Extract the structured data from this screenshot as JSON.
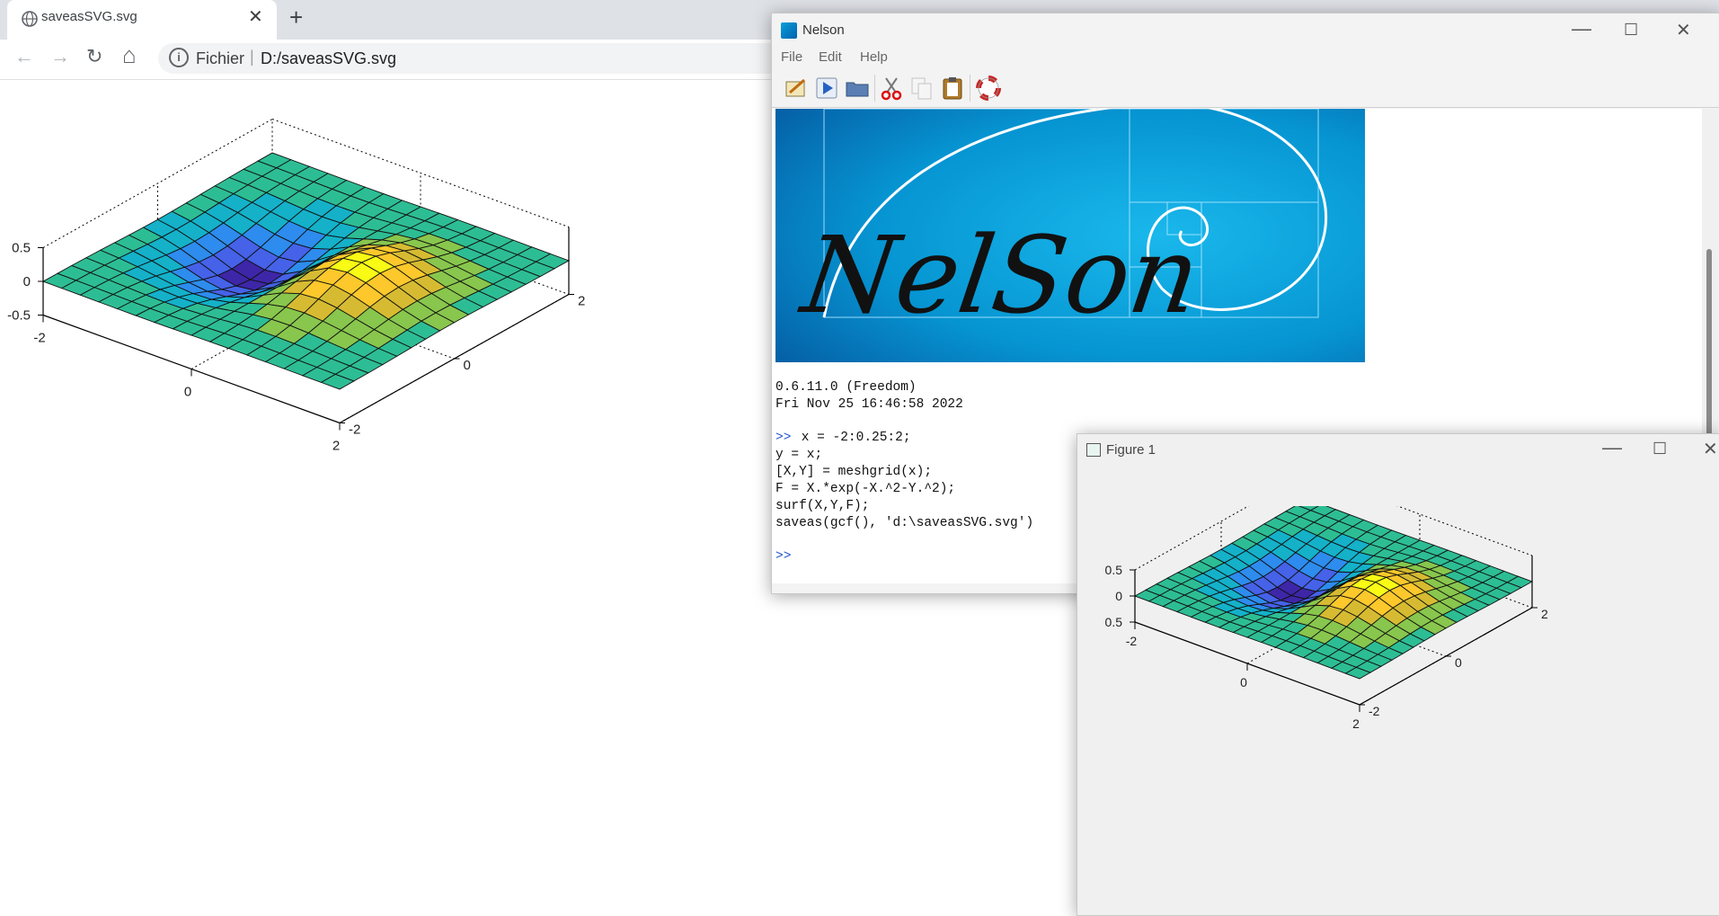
{
  "browser": {
    "tab_title": "saveasSVG.svg",
    "tab_close": "✕",
    "new_tab": "+",
    "nav": {
      "back": "←",
      "forward": "→",
      "reload": "↻",
      "home": "⌂"
    },
    "address": {
      "info": "i",
      "scheme": "Fichier",
      "separator": "|",
      "url": "D:/saveasSVG.svg"
    }
  },
  "nelson_window": {
    "title": "Nelson",
    "controls": {
      "minimize": "—",
      "maximize": "☐",
      "close": "✕"
    },
    "menu": [
      "File",
      "Edit",
      "Help"
    ],
    "toolbar_icons": [
      "editor-icon",
      "run-icon",
      "open-folder-icon",
      "cut-icon",
      "copy-icon",
      "paste-icon",
      "help-lifebuoy-icon"
    ],
    "banner_text": "NelSon",
    "console": {
      "version": "0.6.11.0 (Freedom)",
      "date": "Fri Nov 25 16:46:58 2022",
      "prompt": ">>",
      "commands": [
        " x = -2:0.25:2;",
        "y = x;",
        "[X,Y] = meshgrid(x);",
        "F = X.*exp(-X.^2-Y.^2);",
        "surf(X,Y,F);",
        "saveas(gcf(), 'd:\\saveasSVG.svg')"
      ]
    }
  },
  "figure_window": {
    "title": "Figure 1",
    "controls": {
      "minimize": "—",
      "maximize": "☐",
      "close": "✕"
    }
  },
  "chart_data": [
    {
      "type": "surface",
      "function": "F = X.*exp(-X.^2-Y.^2)",
      "x": [
        -2,
        2,
        0.25
      ],
      "y": [
        -2,
        2,
        0.25
      ],
      "zlim": [
        -0.5,
        0.5
      ],
      "z_ticks": [
        "0.5",
        "0",
        "-0.5"
      ],
      "x_ticks": [
        "-2",
        "0",
        "2"
      ],
      "y_ticks": [
        "-2",
        "0",
        "2"
      ],
      "colormap": [
        "#3e26a8",
        "#4562e8",
        "#2d8ced",
        "#14b1c9",
        "#2dbd94",
        "#88c64d",
        "#d6bb32",
        "#fcc82b",
        "#f9fb15"
      ]
    },
    {
      "type": "surface",
      "function": "F = X.*exp(-X.^2-Y.^2)",
      "x": [
        -2,
        2,
        0.25
      ],
      "y": [
        -2,
        2,
        0.25
      ],
      "zlim": [
        -0.5,
        0.5
      ],
      "z_ticks": [
        "0.5",
        "0",
        "-0.5"
      ],
      "x_ticks": [
        "-2",
        "0",
        "2"
      ],
      "y_ticks": [
        "-2",
        "0",
        "2"
      ],
      "colormap": [
        "#3e26a8",
        "#4562e8",
        "#2d8ced",
        "#14b1c9",
        "#2dbd94",
        "#88c64d",
        "#d6bb32",
        "#fcc82b",
        "#f9fb15"
      ]
    }
  ]
}
